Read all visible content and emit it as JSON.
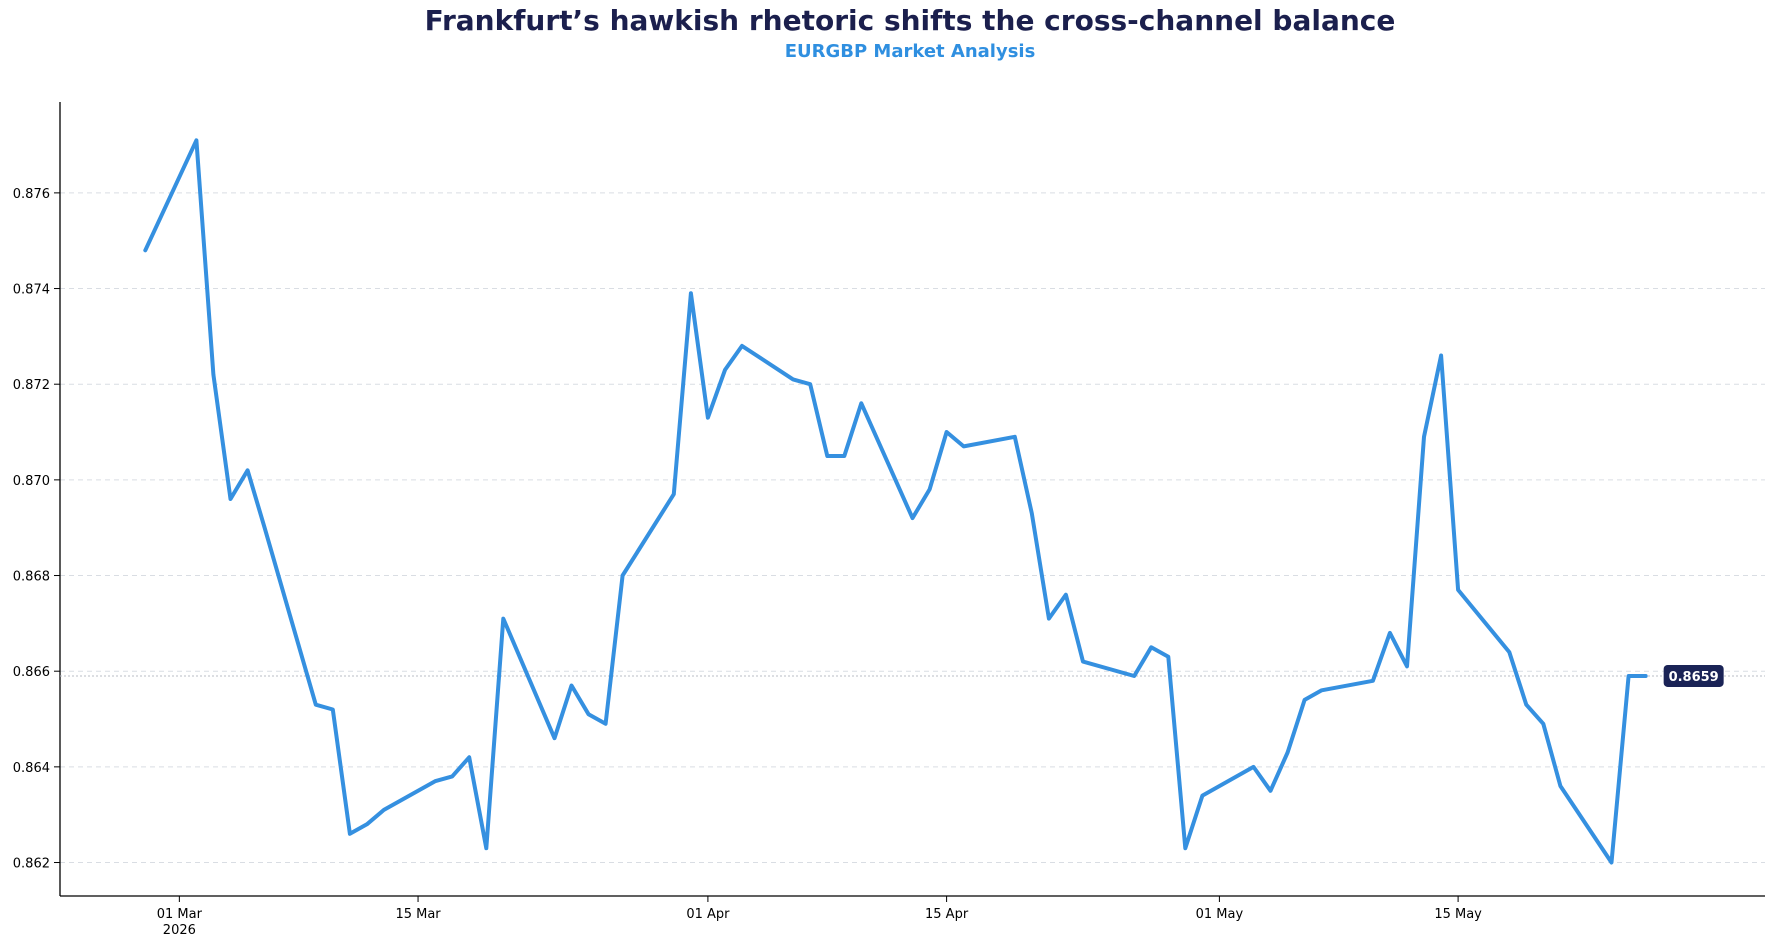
{
  "chart_data": {
    "type": "line",
    "title": "Frankfurt’s hawkish rhetoric shifts the cross-channel balance",
    "subtitle": "EURGBP Market Analysis",
    "xlabel": "",
    "ylabel": "",
    "ylim": [
      0.8613,
      0.8779
    ],
    "xlim": [
      "2026-02-22",
      "2026-06-02"
    ],
    "grid": "horizontal-dashed",
    "line_color": "#3590e0",
    "last_value_label": "0.8659",
    "x_ticks": [
      {
        "date": "2026-03-01",
        "label": "01 Mar",
        "sublabel": "2026"
      },
      {
        "date": "2026-03-15",
        "label": "15 Mar",
        "sublabel": ""
      },
      {
        "date": "2026-04-01",
        "label": "01 Apr",
        "sublabel": ""
      },
      {
        "date": "2026-04-15",
        "label": "15 Apr",
        "sublabel": ""
      },
      {
        "date": "2026-05-01",
        "label": "01 May",
        "sublabel": ""
      },
      {
        "date": "2026-05-15",
        "label": "15 May",
        "sublabel": ""
      }
    ],
    "y_ticks": [
      0.862,
      0.864,
      0.866,
      0.868,
      0.87,
      0.872,
      0.874,
      0.876
    ],
    "y_tick_labels": [
      "0.862",
      "0.864",
      "0.866",
      "0.868",
      "0.870",
      "0.872",
      "0.874",
      "0.876"
    ],
    "series": [
      {
        "x": [
          "2026-02-27",
          "2026-03-02",
          "2026-03-03",
          "2026-03-04",
          "2026-03-05",
          "2026-03-06",
          "2026-03-09",
          "2026-03-10",
          "2026-03-11",
          "2026-03-12",
          "2026-03-13",
          "2026-03-16",
          "2026-03-17",
          "2026-03-18",
          "2026-03-19",
          "2026-03-20",
          "2026-03-23",
          "2026-03-24",
          "2026-03-25",
          "2026-03-26",
          "2026-03-27",
          "2026-03-30",
          "2026-03-31",
          "2026-04-01",
          "2026-04-02",
          "2026-04-03",
          "2026-04-06",
          "2026-04-07",
          "2026-04-08",
          "2026-04-09",
          "2026-04-10",
          "2026-04-13",
          "2026-04-14",
          "2026-04-15",
          "2026-04-16",
          "2026-04-19",
          "2026-04-20",
          "2026-04-21",
          "2026-04-22",
          "2026-04-23",
          "2026-04-26",
          "2026-04-27",
          "2026-04-28",
          "2026-04-29",
          "2026-04-30",
          "2026-05-03",
          "2026-05-04",
          "2026-05-05",
          "2026-05-06",
          "2026-05-07",
          "2026-05-10",
          "2026-05-11",
          "2026-05-12",
          "2026-05-13",
          "2026-05-14",
          "2026-05-15",
          "2026-05-18",
          "2026-05-19",
          "2026-05-20",
          "2026-05-21",
          "2026-05-24",
          "2026-05-25",
          "2026-05-26"
        ],
        "values": [
          0.8748,
          0.8771,
          0.8722,
          0.8696,
          0.8702,
          0.869,
          0.8653,
          0.8652,
          0.8626,
          0.8628,
          0.8631,
          0.8637,
          0.8638,
          0.8642,
          0.8623,
          0.8671,
          0.8646,
          0.8657,
          0.8651,
          0.8649,
          0.868,
          0.8697,
          0.8739,
          0.8713,
          0.8723,
          0.8728,
          0.8721,
          0.872,
          0.8705,
          0.8705,
          0.8716,
          0.8692,
          0.8698,
          0.871,
          0.8707,
          0.8709,
          0.8693,
          0.8671,
          0.8676,
          0.8662,
          0.8659,
          0.8665,
          0.8663,
          0.8623,
          0.8634,
          0.864,
          0.8635,
          0.8643,
          0.8654,
          0.8656,
          0.8658,
          0.8668,
          0.8661,
          0.8709,
          0.8726,
          0.8677,
          0.8664,
          0.8653,
          0.8649,
          0.8636,
          0.862,
          0.8659,
          0.8659
        ]
      }
    ]
  }
}
